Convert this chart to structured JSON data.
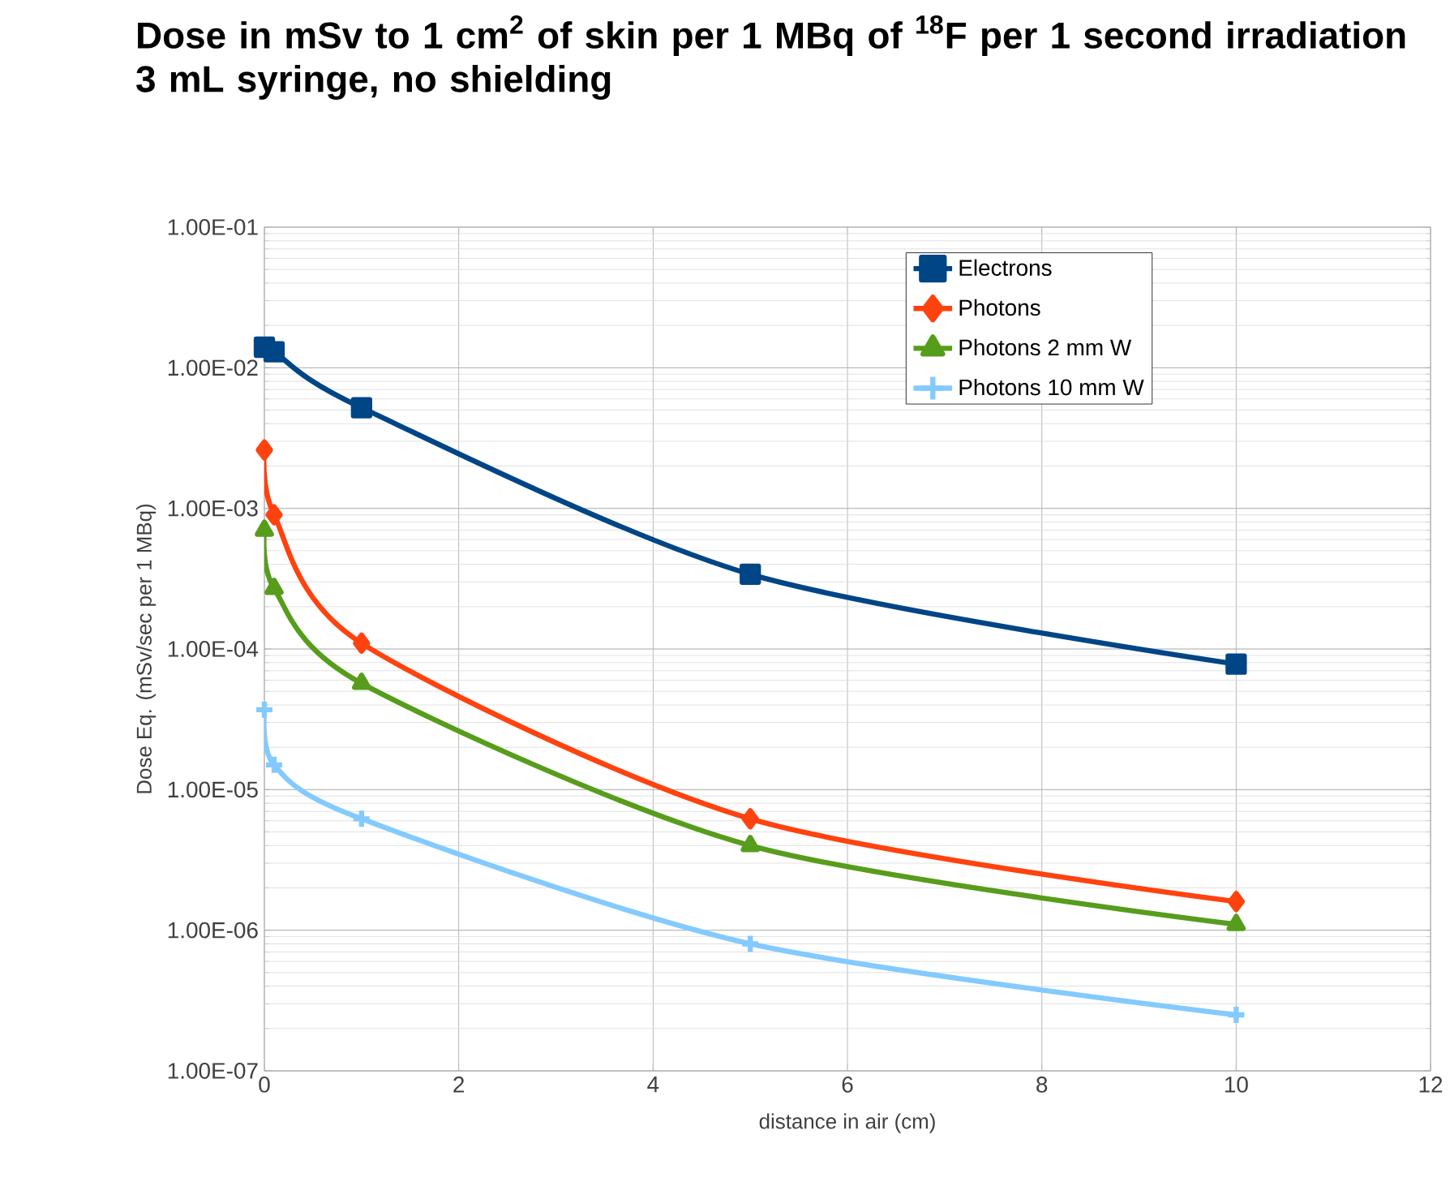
{
  "chart_data": {
    "type": "line",
    "title": "Dose in mSv to 1 cm$^{2}$ of skin per 1 MBq of $^{18}$F per 1 second irradiation 3 mL syringe, no shielding",
    "xlabel": "distance in air (cm)",
    "ylabel": "Dose Eq. (mSv/sec per 1 MBq)",
    "x": [
      0,
      0.1,
      1,
      5,
      10
    ],
    "series": [
      {
        "name": "Electrons",
        "color": "#004586",
        "marker": "square",
        "values": [
          0.014,
          0.013,
          0.0052,
          0.00034,
          7.8e-05
        ]
      },
      {
        "name": "Photons",
        "color": "#ff420e",
        "marker": "diamond",
        "values": [
          0.0026,
          0.0009,
          0.00011,
          6.2e-06,
          1.6e-06
        ]
      },
      {
        "name": "Photons 2 mm W",
        "color": "#579d1c",
        "marker": "triangle",
        "values": [
          0.0007,
          0.00027,
          5.7e-05,
          4e-06,
          1.1e-06
        ]
      },
      {
        "name": "Photons 10 mm W",
        "color": "#83caff",
        "marker": "cross",
        "values": [
          3.7e-05,
          1.5e-05,
          6.2e-06,
          8e-07,
          2.5e-07
        ]
      }
    ],
    "log": "y",
    "xlim": [
      0,
      12
    ],
    "xticks": [
      0,
      2,
      4,
      6,
      8,
      10,
      12
    ],
    "ylim": [
      1e-07,
      0.1
    ],
    "yticks": [
      {
        "value": 1e-07,
        "label": "1.00E-07"
      },
      {
        "value": 1e-06,
        "label": "1.00E-06"
      },
      {
        "value": 1e-05,
        "label": "1.00E-05"
      },
      {
        "value": 0.0001,
        "label": "1.00E-04"
      },
      {
        "value": 0.001,
        "label": "1.00E-03"
      },
      {
        "value": 0.01,
        "label": "1.00E-02"
      },
      {
        "value": 0.1,
        "label": "1.00E-01"
      }
    ],
    "grid": true,
    "legend": "top right",
    "line_style": "solid"
  }
}
